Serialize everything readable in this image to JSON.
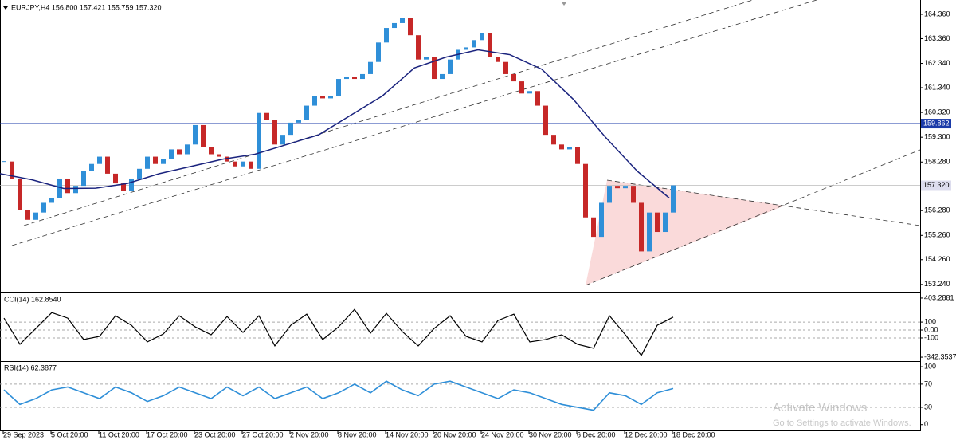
{
  "symbol_info": "EURJPY,H4  156.800 157.421 155.759 157.320",
  "x_labels": [
    "29 Sep 2023",
    "5 Oct 20:00",
    "11 Oct 20:00",
    "17 Oct 20:00",
    "23 Oct 20:00",
    "27 Oct 20:00",
    "2 Nov 20:00",
    "8 Nov 20:00",
    "14 Nov 20:00",
    "20 Nov 20:00",
    "24 Nov 20:00",
    "30 Nov 20:00",
    "6 Dec 20:00",
    "12 Dec 20:00",
    "18 Dec 20:00"
  ],
  "price_pane": {
    "type": "candlestick",
    "ylim": [
      152.94,
      164.95
    ],
    "yticks": [
      {
        "value": 164.36,
        "label": "164.360"
      },
      {
        "value": 163.36,
        "label": "163.360"
      },
      {
        "value": 162.34,
        "label": "162.340"
      },
      {
        "value": 161.34,
        "label": "161.340"
      },
      {
        "value": 160.32,
        "label": "160.320"
      },
      {
        "value": 159.3,
        "label": "159.300"
      },
      {
        "value": 158.28,
        "label": "158.280"
      },
      {
        "value": 156.28,
        "label": "156.280"
      },
      {
        "value": 155.26,
        "label": "155.260"
      },
      {
        "value": 154.26,
        "label": "154.260"
      },
      {
        "value": 153.24,
        "label": "153.240"
      }
    ],
    "up_color": "#2f8fd8",
    "down_color": "#c62828",
    "closes": [
      158.3,
      157.6,
      156.3,
      155.9,
      156.2,
      156.6,
      156.8,
      157.6,
      157.0,
      157.3,
      157.9,
      158.2,
      158.5,
      157.8,
      157.4,
      157.1,
      157.6,
      158.0,
      158.5,
      158.2,
      158.4,
      158.8,
      158.6,
      159.0,
      159.8,
      158.9,
      158.6,
      158.5,
      158.3,
      158.1,
      158.3,
      158.0,
      160.3,
      160.0,
      159.0,
      159.4,
      159.9,
      160.0,
      160.6,
      161.0,
      160.9,
      161.0,
      161.7,
      161.8,
      161.7,
      161.9,
      162.4,
      163.2,
      163.8,
      164.0,
      164.2,
      163.5,
      162.5,
      162.6,
      161.7,
      161.9,
      162.5,
      162.9,
      163.0,
      163.3,
      163.6,
      162.6,
      162.4,
      161.9,
      161.6,
      161.1,
      161.2,
      160.6,
      159.4,
      159.0,
      158.8,
      158.9,
      158.2,
      156.0,
      155.2,
      156.6,
      157.3,
      157.2,
      157.3,
      156.6,
      154.6,
      156.2,
      155.4,
      156.2,
      157.32
    ],
    "ma": {
      "color": "#1a237e",
      "values": [
        157.8,
        157.55,
        157.19,
        157.2,
        157.4,
        157.8,
        158.1,
        158.4,
        158.6,
        159.0,
        159.4,
        160.2,
        161.0,
        162.15,
        162.6,
        162.9,
        162.7,
        162.1,
        160.85,
        159.3,
        157.9,
        156.8
      ]
    },
    "hline": {
      "value": 159.862,
      "color": "#1a3aa8"
    },
    "last": {
      "value": 157.32,
      "label": "157.320"
    }
  },
  "cci_pane": {
    "title": "CCI(14) 162.8540",
    "color": "#000000",
    "ylim": [
      -382,
      463
    ],
    "yticks": [
      {
        "value": 403.2881,
        "label": "403.2881"
      },
      100,
      {
        "value": 0,
        "label": "0.00"
      },
      -100,
      {
        "value": -342.3537,
        "label": "-342.3537"
      }
    ],
    "values": [
      150,
      -180,
      20,
      220,
      150,
      -120,
      -80,
      180,
      60,
      -150,
      -50,
      180,
      40,
      -60,
      170,
      -30,
      180,
      -200,
      60,
      200,
      -120,
      40,
      260,
      -40,
      210,
      -20,
      -200,
      20,
      180,
      -80,
      -150,
      120,
      200,
      -150,
      -120,
      -60,
      -180,
      -230,
      180,
      -60,
      -320,
      60,
      162.854
    ]
  },
  "rsi_pane": {
    "title": "RSI(14) 62.3877",
    "color": "#2f8fd8",
    "ylim": [
      -10,
      107
    ],
    "yticks": [
      100,
      70,
      30,
      0
    ],
    "values": [
      60,
      35,
      45,
      60,
      65,
      55,
      45,
      65,
      55,
      40,
      50,
      65,
      55,
      45,
      65,
      50,
      65,
      45,
      55,
      65,
      45,
      55,
      70,
      55,
      75,
      60,
      50,
      70,
      75,
      65,
      55,
      45,
      60,
      55,
      45,
      35,
      30,
      25,
      55,
      50,
      35,
      55,
      62.3877
    ]
  },
  "watermark": {
    "title": "Activate Windows",
    "subtitle": "Go to Settings to activate Windows."
  }
}
